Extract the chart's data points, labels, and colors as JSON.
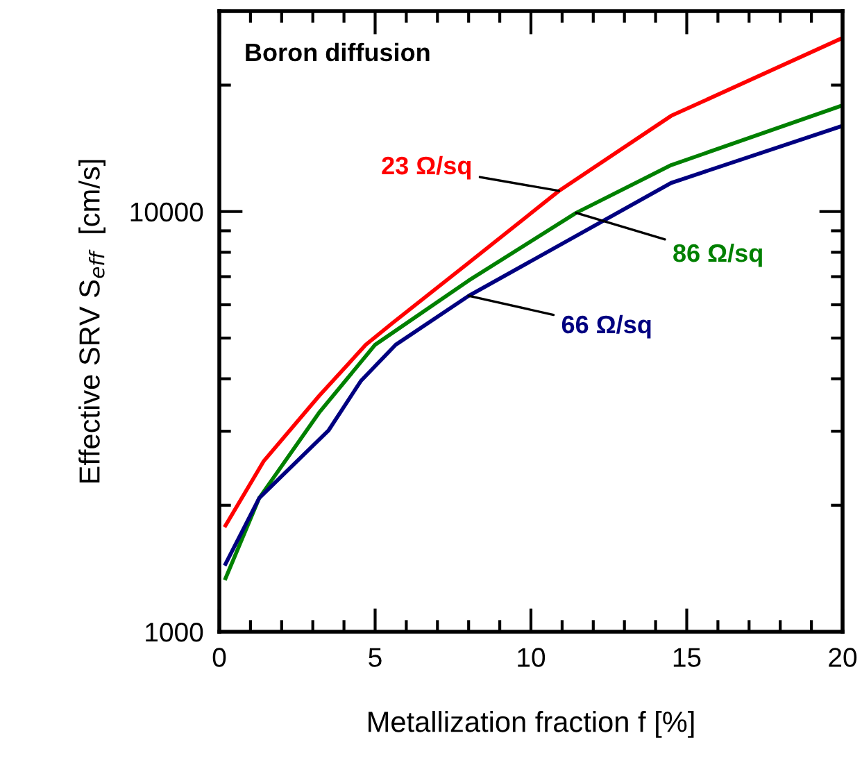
{
  "chart_data": {
    "type": "line",
    "xlabel": "Metallization fraction f [%]",
    "ylabel": "Effective SRV S$_{eff}$  [cm/s]",
    "annotations": [
      "Boron diffusion"
    ],
    "log": "y",
    "xlim": [
      0,
      20
    ],
    "xticks": [
      0,
      5,
      10,
      15,
      20
    ],
    "ylim": [
      1000,
      30000
    ],
    "yticks": [
      1000,
      10000
    ],
    "grid": false,
    "legend": false,
    "marker": "none",
    "line_style": "solid",
    "series": [
      {
        "name": "23 Ω/sq",
        "color": "#ff0000",
        "x": [
          0.2,
          1.43,
          3.2,
          4.7,
          5.57,
          8.0,
          10.9,
          14.5,
          20
        ],
        "values": [
          1790,
          2550,
          3640,
          4820,
          5440,
          7550,
          11200,
          16900,
          25900
        ]
      },
      {
        "name": "86 Ω/sq",
        "color": "#008000",
        "x": [
          0.2,
          1.28,
          3.2,
          5.0,
          8.0,
          11.45,
          14.5,
          20
        ],
        "values": [
          1340,
          2080,
          3320,
          4820,
          6850,
          9930,
          12900,
          17900
        ]
      },
      {
        "name": "66 Ω/sq",
        "color": "#000080",
        "x": [
          0.2,
          1.28,
          3.5,
          4.54,
          5.66,
          8.0,
          14.5,
          20
        ],
        "values": [
          1450,
          2080,
          3010,
          3950,
          4820,
          6300,
          11700,
          16000
        ]
      }
    ]
  }
}
